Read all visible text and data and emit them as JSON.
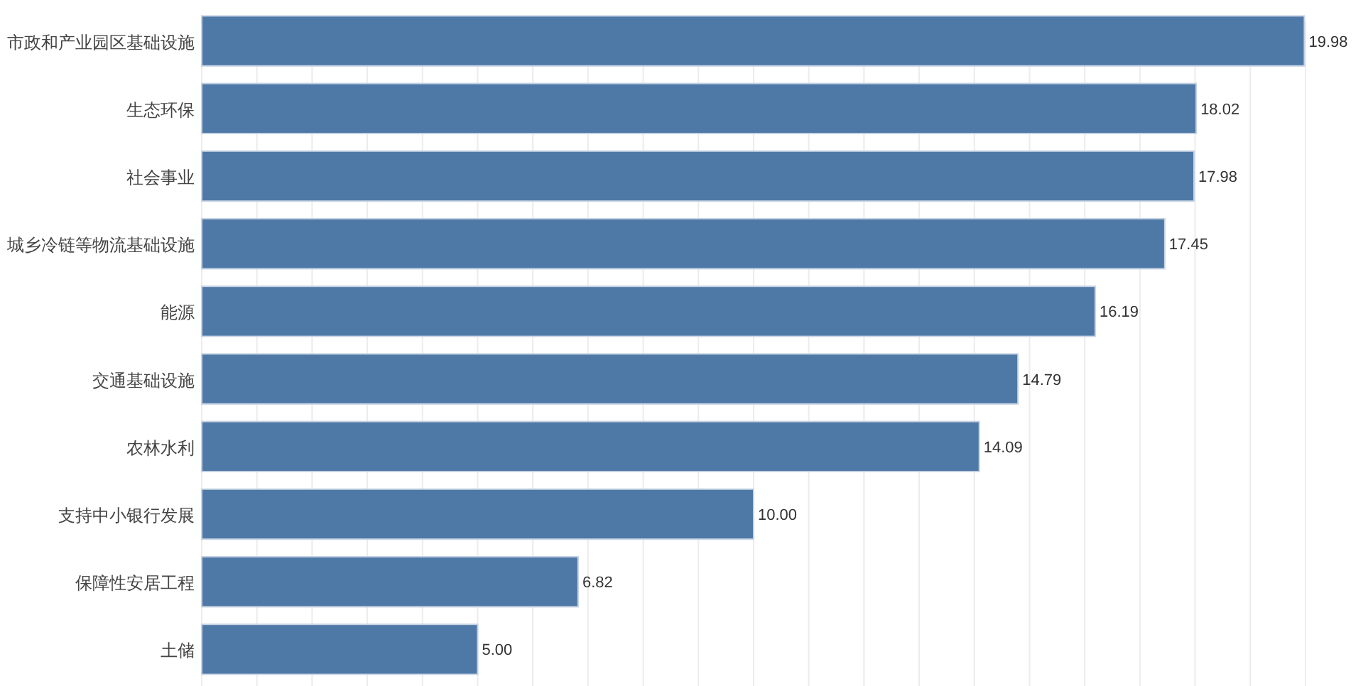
{
  "chart_data": {
    "type": "bar",
    "orientation": "horizontal",
    "categories": [
      "市政和产业园区基础设施",
      "生态环保",
      "社会事业",
      "城乡冷链等物流基础设施",
      "能源",
      "交通基础设施",
      "农林水利",
      "支持中小银行发展",
      "保障性安居工程",
      "土储"
    ],
    "values": [
      19.98,
      18.02,
      17.98,
      17.45,
      16.19,
      14.79,
      14.09,
      10.0,
      6.82,
      5.0
    ],
    "color": "#4e79a7",
    "xlim": [
      0,
      20
    ],
    "xticks": [
      {
        "value": 0,
        "label": null
      },
      {
        "value": 1,
        "label": null
      },
      {
        "value": 2,
        "label": null
      },
      {
        "value": 3,
        "label": null
      },
      {
        "value": 4,
        "label": null
      },
      {
        "value": 5,
        "label": null
      },
      {
        "value": 6,
        "label": null
      },
      {
        "value": 7,
        "label": null
      },
      {
        "value": 8,
        "label": null
      },
      {
        "value": 9,
        "label": null
      },
      {
        "value": 10,
        "label": null
      },
      {
        "value": 11,
        "label": null
      },
      {
        "value": 12,
        "label": null
      },
      {
        "value": 13,
        "label": null
      },
      {
        "value": 14,
        "label": null
      },
      {
        "value": 15,
        "label": null
      },
      {
        "value": 16,
        "label": null
      },
      {
        "value": 17,
        "label": null
      },
      {
        "value": 18,
        "label": null
      },
      {
        "value": 19,
        "label": null
      },
      {
        "value": 20,
        "label": null
      }
    ],
    "value_labels": [
      "19.98",
      "18.02",
      "17.98",
      "17.45",
      "16.19",
      "14.79",
      "14.09",
      "10.00",
      "6.82",
      "5.00"
    ],
    "grid": "x"
  }
}
